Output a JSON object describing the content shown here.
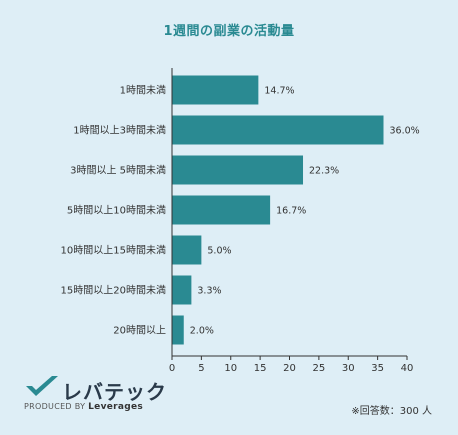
{
  "chart_data": {
    "type": "bar",
    "orientation": "horizontal",
    "title": "1週間の副業の活動量",
    "categories": [
      "1時間未満",
      "1時間以上3時間未満",
      "3時間以上 5時間未満",
      "5時間以上10時間未満",
      "10時間以上15時間未満",
      "15時間以上20時間未満",
      "20時間以上"
    ],
    "values": [
      14.7,
      36.0,
      22.3,
      16.7,
      5.0,
      3.3,
      2.0
    ],
    "value_labels": [
      "14.7%",
      "36.0%",
      "22.3%",
      "16.7%",
      "5.0%",
      "3.3%",
      "2.0%"
    ],
    "xlim": [
      0,
      40
    ],
    "xticks": [
      0,
      5,
      10,
      15,
      20,
      25,
      30,
      35,
      40
    ],
    "bar_color": "#2a8a92",
    "grid": false
  },
  "brand": {
    "name": "レバテック",
    "sub_prefix": "PRODUCED BY",
    "sub_brand": "Leverages",
    "check_color": "#2a8a92"
  },
  "note": "※回答数：300 人"
}
